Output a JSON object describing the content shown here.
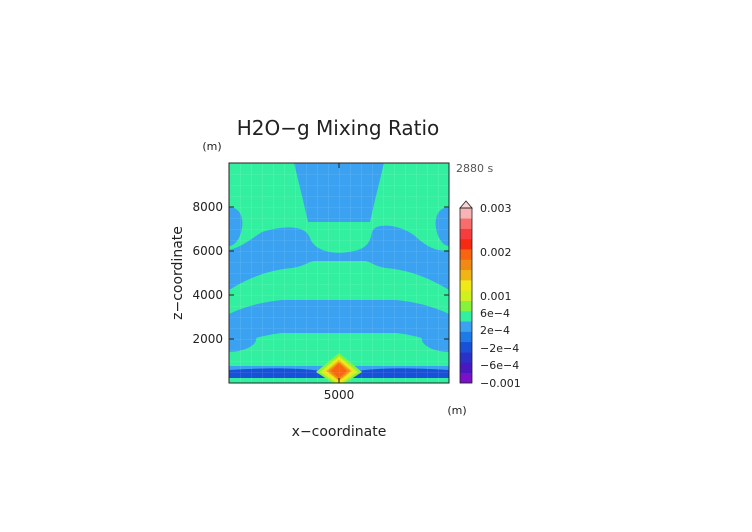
{
  "chart_data": {
    "type": "heatmap",
    "title": "H2O−g Mixing Ratio",
    "xlabel": "x−coordinate",
    "ylabel": "z−coordinate",
    "x_unit": "(m)",
    "y_unit": "(m)",
    "time_label": "2880 s",
    "xlim": [
      0,
      10000
    ],
    "ylim": [
      0,
      10000
    ],
    "x_ticks": [
      5000
    ],
    "x_tick_labels": [
      "5000"
    ],
    "y_ticks": [
      2000,
      4000,
      6000,
      8000
    ],
    "y_tick_labels": [
      "2000",
      "4000",
      "6000",
      "8000"
    ],
    "grid": true,
    "legend": "right",
    "colorbar": {
      "tick_labels": [
        "0.003",
        "0.002",
        "0.001",
        "6e−4",
        "2e−4",
        "−2e−4",
        "−6e−4",
        "−0.001"
      ],
      "colors": [
        "#7a10c8",
        "#4a18c0",
        "#2a30c8",
        "#1850d8",
        "#1e7ae6",
        "#3aa2f0",
        "#33f0a0",
        "#86f23c",
        "#d0f020",
        "#f0e818",
        "#f0b414",
        "#f08a14",
        "#f86410",
        "#f62a12",
        "#f63c3c",
        "#f86c6c",
        "#f8b4b4"
      ]
    },
    "regions": [
      {
        "label": "−2e−4 upper plume",
        "level": 5,
        "shape": "plume",
        "x": [
          3000,
          7000
        ],
        "z": [
          7100,
          10000
        ]
      },
      {
        "label": "2e−4 band",
        "level": 6,
        "z": [
          6600,
          8700
        ]
      },
      {
        "label": "−2e−4 layer",
        "level": 5,
        "z": [
          3300,
          6600
        ]
      },
      {
        "label": "2e−4 band",
        "level": 6,
        "z": [
          2300,
          3900
        ]
      },
      {
        "label": "−2e−4 layer",
        "level": 5,
        "z": [
          1700,
          2300
        ]
      },
      {
        "label": "2e−4 band",
        "level": 6,
        "z": [
          1100,
          1900
        ]
      },
      {
        "label": "−6e−4 low layer",
        "level": 3,
        "z": [
          0,
          600
        ]
      },
      {
        "label": "0.002 core",
        "level": 13,
        "x": 5000,
        "z": 700
      }
    ]
  }
}
